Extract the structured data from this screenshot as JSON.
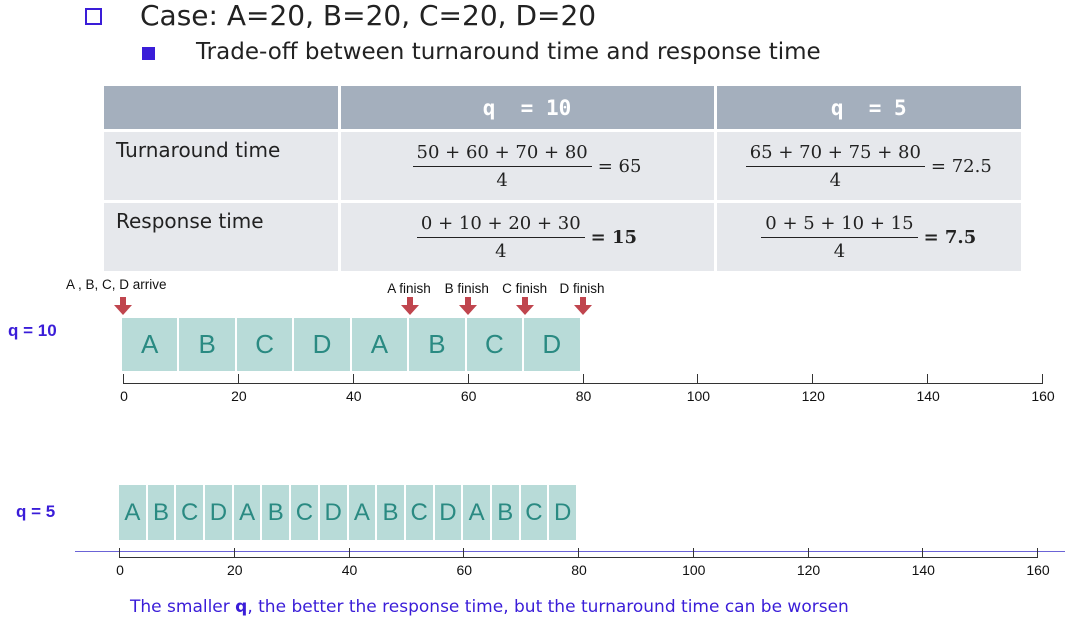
{
  "slide": {
    "heading": "Case: A=20, B=20, C=20, D=20",
    "subheading": "Trade-off between turnaround time and response time",
    "footer_pre": "The smaller ",
    "footer_bold": "q",
    "footer_post": ", the better the response time, but the turnaround time can be worsen"
  },
  "table": {
    "headers": [
      "",
      "q  = 10",
      "q  = 5"
    ],
    "rows": [
      {
        "label": "Turnaround time",
        "q10": {
          "numerator": "50 + 60 + 70 + 80",
          "denominator": "4",
          "result": "= 65",
          "bold": false
        },
        "q5": {
          "numerator": "65 + 70 + 75 + 80",
          "denominator": "4",
          "result": "= 72.5",
          "bold": false
        }
      },
      {
        "label": "Response time",
        "q10": {
          "numerator": "0 + 10 + 20 + 30",
          "denominator": "4",
          "result": "= 15",
          "bold": true
        },
        "q5": {
          "numerator": "0 + 5 + 10 + 15",
          "denominator": "4",
          "result": "= 7.5",
          "bold": true
        }
      }
    ]
  },
  "timeline": {
    "axis_ticks": [
      "0",
      "20",
      "40",
      "60",
      "80",
      "100",
      "120",
      "140",
      "160"
    ],
    "axis_max": 160,
    "q10": {
      "label": "q = 10",
      "quantum": 10,
      "sequence": [
        "A",
        "B",
        "C",
        "D",
        "A",
        "B",
        "C",
        "D"
      ],
      "events": [
        {
          "text": "A , B, C, D arrive",
          "time": 0
        },
        {
          "text": "A finish",
          "time": 50
        },
        {
          "text": "B finish",
          "time": 60
        },
        {
          "text": "C finish",
          "time": 70
        },
        {
          "text": "D finish",
          "time": 80
        }
      ]
    },
    "q5": {
      "label": "q = 5",
      "quantum": 5,
      "sequence": [
        "A",
        "B",
        "C",
        "D",
        "A",
        "B",
        "C",
        "D",
        "A",
        "B",
        "C",
        "D",
        "A",
        "B",
        "C",
        "D"
      ]
    }
  },
  "colors": {
    "accent": "#3a1dd8",
    "header_bg": "#a4afbd",
    "cell_bg": "#e6e8ec",
    "block_fill": "#b8dbd8",
    "block_text": "#2a8a82",
    "arrow": "#c0454e"
  }
}
